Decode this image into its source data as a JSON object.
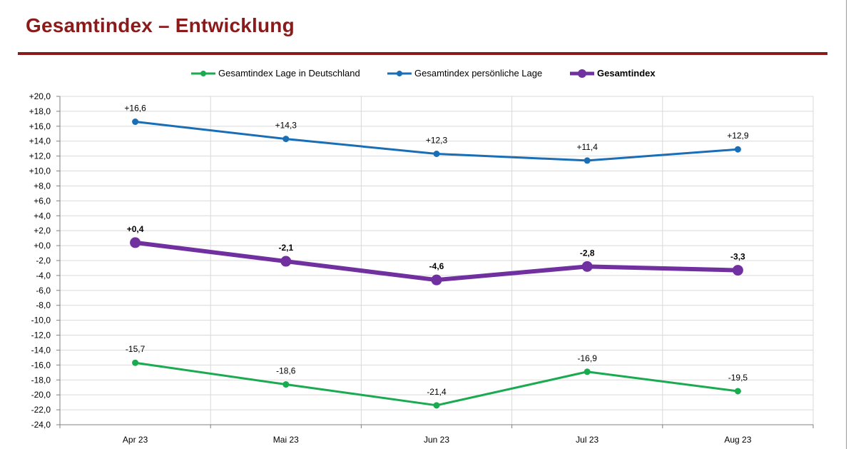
{
  "title": "Gesamtindex – Entwicklung",
  "chart_data": {
    "type": "line",
    "categories": [
      "Apr 23",
      "Mai 23",
      "Jun 23",
      "Jul 23",
      "Aug 23"
    ],
    "ylim": [
      -24,
      20
    ],
    "ytick_step": 2,
    "ytick_labels": [
      "+20,0",
      "+18,0",
      "+16,0",
      "+14,0",
      "+12,0",
      "+10,0",
      "+8,0",
      "+6,0",
      "+4,0",
      "+2,0",
      "+0,0",
      "-2,0",
      "-4,0",
      "-6,0",
      "-8,0",
      "-10,0",
      "-12,0",
      "-14,0",
      "-16,0",
      "-18,0",
      "-20,0",
      "-22,0",
      "-24,0"
    ],
    "grid": true,
    "legend_position": "top",
    "series": [
      {
        "name": "Gesamtindex Lage in Deutschland",
        "color": "#1aaa50",
        "values": [
          -15.7,
          -18.6,
          -21.4,
          -16.9,
          -19.5
        ],
        "labels": [
          "-15,7",
          "-18,6",
          "-21,4",
          "-16,9",
          "-19,5"
        ],
        "bold": false
      },
      {
        "name": "Gesamtindex persönliche Lage",
        "color": "#1a6eb5",
        "values": [
          16.6,
          14.3,
          12.3,
          11.4,
          12.9
        ],
        "labels": [
          "+16,6",
          "+14,3",
          "+12,3",
          "+11,4",
          "+12,9"
        ],
        "bold": false
      },
      {
        "name": "Gesamtindex",
        "color": "#7030a0",
        "values": [
          0.4,
          -2.1,
          -4.6,
          -2.8,
          -3.3
        ],
        "labels": [
          "+0,4",
          "-2,1",
          "-4,6",
          "-2,8",
          "-3,3"
        ],
        "bold": true
      }
    ]
  }
}
